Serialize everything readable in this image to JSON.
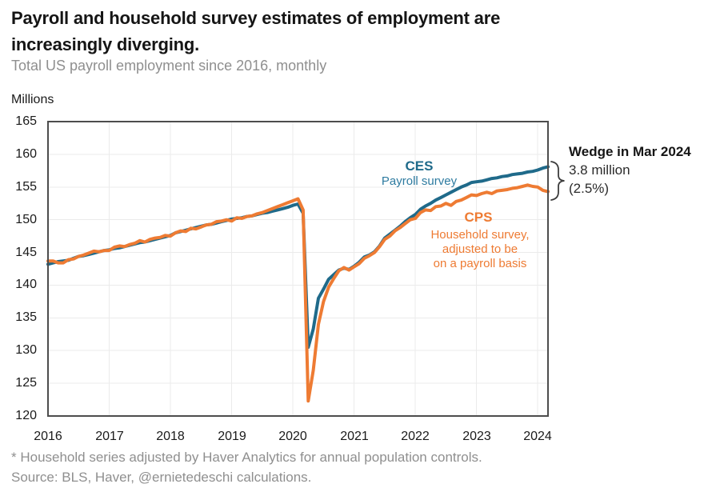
{
  "header": {
    "title_line1": "Payroll and household survey estimates of employment are",
    "title_line2": "increasingly diverging.",
    "subtitle": "Total US payroll employment since 2016, monthly"
  },
  "chart_data": {
    "type": "line",
    "ylabel": "Millions",
    "ylim": [
      120,
      165
    ],
    "y_ticks": [
      165,
      160,
      155,
      150,
      145,
      140,
      135,
      130,
      125,
      120
    ],
    "x_ticks": [
      "2016",
      "2017",
      "2018",
      "2019",
      "2020",
      "2021",
      "2022",
      "2023",
      "2024"
    ],
    "x_start": "Jan 2016",
    "x_end": "Mar 2024",
    "grid": "on",
    "colors": {
      "ces": "#1f6a8a",
      "cps": "#ee7b33",
      "gridline": "#ebebeb",
      "frame": "#4d4d4d"
    },
    "series": [
      {
        "name": "CES",
        "label": "CES",
        "sublabel": "Payroll survey",
        "color": "#1f6a8a",
        "values": [
          143.2,
          143.4,
          143.6,
          143.7,
          143.8,
          144.1,
          144.4,
          144.5,
          144.7,
          144.9,
          145.1,
          145.3,
          145.4,
          145.6,
          145.7,
          145.9,
          146.1,
          146.3,
          146.5,
          146.6,
          146.8,
          147.0,
          147.2,
          147.4,
          147.6,
          148.0,
          148.2,
          148.4,
          148.6,
          148.8,
          149.0,
          149.2,
          149.3,
          149.5,
          149.7,
          149.9,
          150.1,
          150.2,
          150.3,
          150.5,
          150.6,
          150.8,
          151.0,
          151.1,
          151.3,
          151.5,
          151.7,
          151.9,
          152.2,
          152.4,
          151.0,
          130.5,
          133.3,
          138.0,
          139.4,
          140.9,
          141.6,
          142.3,
          142.6,
          142.4,
          142.9,
          143.5,
          144.3,
          144.6,
          145.1,
          146.0,
          147.2,
          147.8,
          148.4,
          149.0,
          149.7,
          150.3,
          150.8,
          151.6,
          152.1,
          152.5,
          153.0,
          153.4,
          153.8,
          154.2,
          154.6,
          155.0,
          155.3,
          155.7,
          155.8,
          155.9,
          156.1,
          156.3,
          156.4,
          156.6,
          156.7,
          156.9,
          157.0,
          157.1,
          157.3,
          157.4,
          157.6,
          157.9,
          158.1
        ]
      },
      {
        "name": "CPS",
        "label": "CPS",
        "sublabel_lines": [
          "Household survey,",
          "adjusted to be",
          "on a payroll basis"
        ],
        "color": "#ee7b33",
        "values": [
          143.7,
          143.7,
          143.4,
          143.4,
          143.9,
          144.0,
          144.4,
          144.6,
          144.9,
          145.2,
          145.1,
          145.3,
          145.3,
          145.8,
          146.0,
          145.9,
          146.2,
          146.4,
          146.8,
          146.6,
          147.0,
          147.2,
          147.3,
          147.6,
          147.5,
          148.0,
          148.3,
          148.2,
          148.7,
          148.6,
          148.9,
          149.2,
          149.3,
          149.7,
          149.8,
          150.0,
          149.8,
          150.3,
          150.2,
          150.5,
          150.6,
          150.9,
          151.1,
          151.4,
          151.7,
          152.0,
          152.3,
          152.6,
          152.9,
          153.2,
          151.5,
          122.3,
          127.0,
          134.0,
          137.5,
          139.7,
          141.0,
          142.2,
          142.7,
          142.3,
          142.8,
          143.3,
          144.1,
          144.5,
          145.0,
          145.9,
          147.0,
          147.5,
          148.3,
          148.8,
          149.4,
          150.0,
          150.2,
          151.1,
          151.5,
          151.4,
          152.0,
          152.1,
          152.5,
          152.2,
          152.8,
          153.0,
          153.4,
          153.8,
          153.7,
          154.0,
          154.2,
          154.0,
          154.4,
          154.5,
          154.6,
          154.8,
          154.9,
          155.1,
          155.3,
          155.1,
          155.0,
          154.5,
          154.3
        ]
      }
    ],
    "annotation": {
      "title": "Wedge in Mar 2024",
      "line1": "3.8 million",
      "line2": "(2.5%)"
    }
  },
  "footer": {
    "note": "* Household series adjusted by Haver Analytics for annual population controls.",
    "source": "Source: BLS, Haver, @ernietedeschi calculations."
  }
}
